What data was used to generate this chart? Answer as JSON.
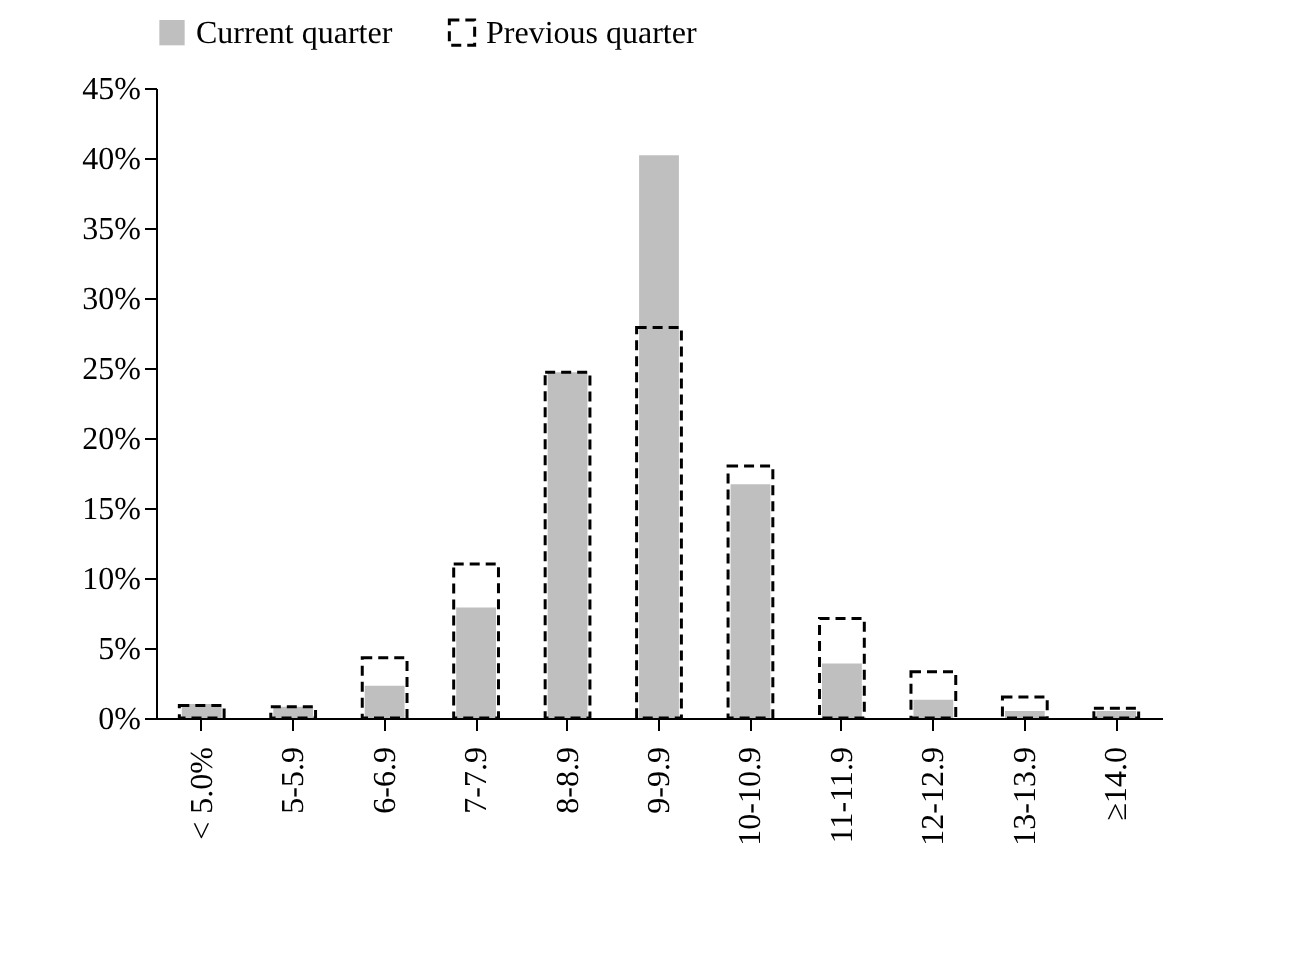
{
  "chart_data": {
    "type": "bar",
    "categories": [
      "< 5.0%",
      "5-5.9",
      "6-6.9",
      "7-7.9",
      "8-8.9",
      "9-9.9",
      "10-10.9",
      "11-11.9",
      "12-12.9",
      "13-13.9",
      "≥14.0"
    ],
    "series": [
      {
        "name": "Current quarter",
        "color": "#bfbfbf",
        "values": [
          1.0,
          0.8,
          2.3,
          7.9,
          24.7,
          40.2,
          16.7,
          3.9,
          1.3,
          0.5,
          0.5
        ]
      },
      {
        "name": "Previous quarter",
        "color": "#000000",
        "line_style": "dashed",
        "values": [
          0.9,
          0.8,
          4.3,
          11.0,
          24.7,
          27.9,
          18.0,
          7.1,
          3.3,
          1.5,
          0.7
        ]
      }
    ],
    "ylim": [
      0,
      45
    ],
    "yticks": [
      {
        "value": 0,
        "label": "0%"
      },
      {
        "value": 5,
        "label": "5%"
      },
      {
        "value": 10,
        "label": "10%"
      },
      {
        "value": 15,
        "label": "15%"
      },
      {
        "value": 20,
        "label": "20%"
      },
      {
        "value": 25,
        "label": "25%"
      },
      {
        "value": 30,
        "label": "30%"
      },
      {
        "value": 35,
        "label": "35%"
      },
      {
        "value": 40,
        "label": "40%"
      },
      {
        "value": 45,
        "label": "45%"
      }
    ],
    "grid": false,
    "legend": "top"
  }
}
